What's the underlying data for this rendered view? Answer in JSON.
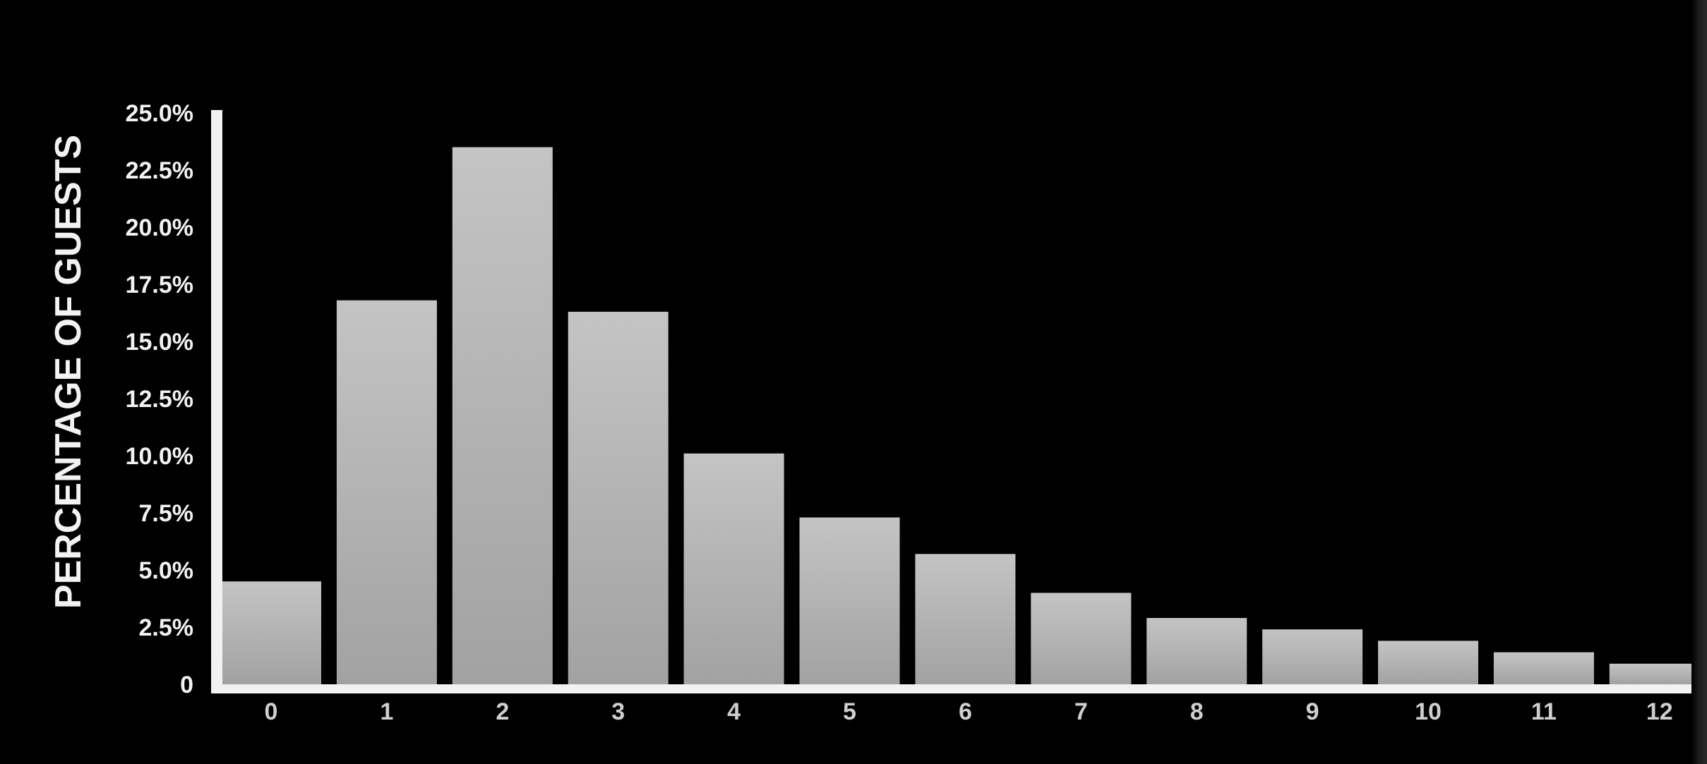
{
  "chart_data": {
    "type": "bar",
    "title": "",
    "xlabel": "",
    "ylabel": "PERCENTAGE OF GUESTS",
    "categories": [
      "0",
      "1",
      "2",
      "3",
      "4",
      "5",
      "6",
      "7",
      "8",
      "9",
      "10",
      "11",
      "12"
    ],
    "values": [
      4.5,
      16.8,
      23.5,
      16.3,
      10.1,
      7.3,
      5.7,
      4.0,
      2.9,
      2.4,
      1.9,
      1.4,
      0.9
    ],
    "ylim": [
      0,
      25
    ],
    "yticks": [
      "0",
      "2.5%",
      "5.0%",
      "7.5%",
      "10.0%",
      "12.5%",
      "15.0%",
      "17.5%",
      "20.0%",
      "22.5%",
      "25.0%"
    ],
    "ytick_values": [
      0,
      2.5,
      5,
      7.5,
      10,
      12.5,
      15,
      17.5,
      20,
      22.5,
      25
    ],
    "grid": false,
    "legend": "none",
    "colors": {
      "background": "#000000",
      "bar_top": "#c4c4c4",
      "bar_bottom": "#a2a2a2",
      "axis": "#f2f2f2",
      "text": "#f2f2f2",
      "xtick_text": "#cfcfcf"
    }
  }
}
